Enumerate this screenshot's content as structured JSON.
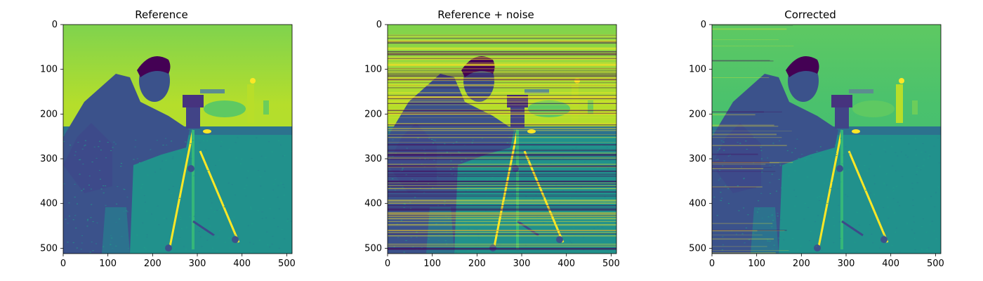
{
  "panels": [
    {
      "title": "Reference",
      "variant": "reference"
    },
    {
      "title": "Reference + noise",
      "variant": "noisy"
    },
    {
      "title": "Corrected",
      "variant": "corrected"
    }
  ],
  "axes": {
    "x_ticks": [
      "0",
      "100",
      "200",
      "300",
      "400",
      "500"
    ],
    "y_ticks": [
      "0",
      "100",
      "200",
      "300",
      "400",
      "500"
    ],
    "x_range": [
      0,
      512
    ],
    "y_range": [
      0,
      512
    ]
  },
  "colormap": "viridis",
  "colors": {
    "sky": "#7fd34e",
    "sky_top": "#5ec962",
    "ground": "#21918c",
    "figure": "#3b528b",
    "dark": "#440154",
    "bright": "#fde725"
  }
}
